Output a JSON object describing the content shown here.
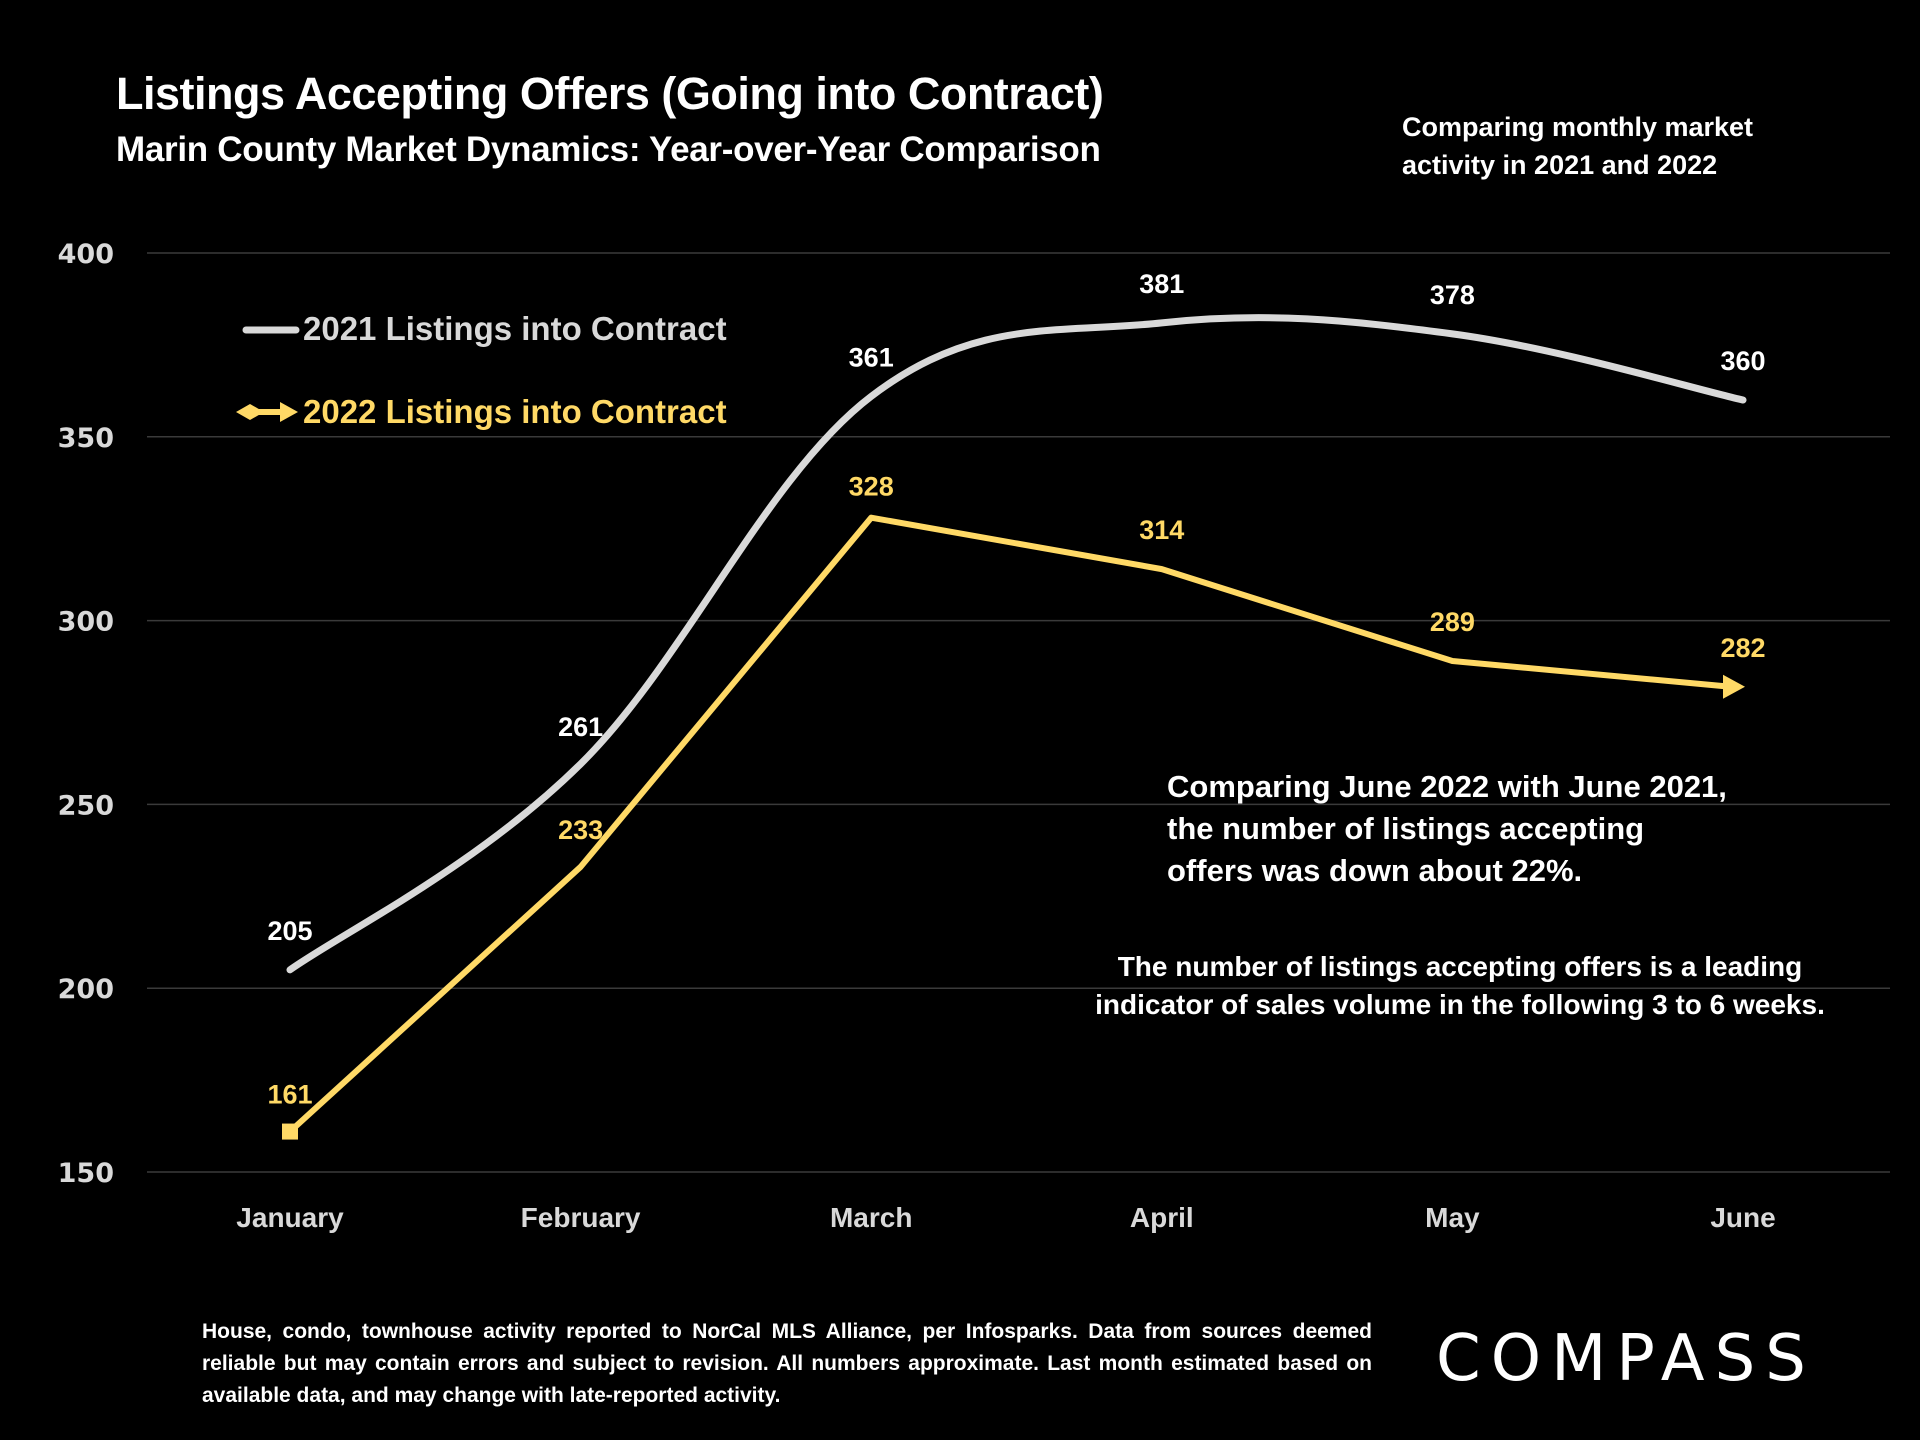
{
  "header": {
    "title": "Listings Accepting Offers (Going into Contract)",
    "subtitle": "Marin County Market Dynamics: Year-over-Year Comparison",
    "side_note": "Comparing monthly market activity in 2021 and 2022"
  },
  "annotations": {
    "comparison": "Comparing June 2022 with June 2021, the number of listings accepting offers was down about 22%.",
    "leading_indicator": "The number of listings accepting offers is a leading indicator of sales volume in the following 3 to 6 weeks."
  },
  "footer": {
    "note": "House, condo, townhouse activity reported to NorCal MLS Alliance, per Infosparks. Data from sources deemed reliable but may contain errors and subject to revision. All numbers approximate. Last month estimated based on available data, and may change with late-reported activity.",
    "logo": "COMPASS"
  },
  "colors": {
    "background": "#000000",
    "series_2021": "#d9d9d9",
    "series_2022": "#ffd966",
    "gridline": "#3a3a3a",
    "axis_text": "#d9d9d9"
  },
  "chart_data": {
    "type": "line",
    "title": "Listings Accepting Offers (Going into Contract)",
    "xlabel": "",
    "ylabel": "",
    "categories": [
      "January",
      "February",
      "March",
      "April",
      "May",
      "June"
    ],
    "ylim": [
      150,
      400
    ],
    "yticks": [
      150,
      200,
      250,
      300,
      350,
      400
    ],
    "grid": true,
    "legend_position": "top-left",
    "series": [
      {
        "name": "2021 Listings into Contract",
        "values": [
          205,
          261,
          361,
          381,
          378,
          360
        ],
        "smooth": true,
        "color": "#d9d9d9",
        "labels": [
          "205",
          "261",
          "361",
          "381",
          "378",
          "360"
        ]
      },
      {
        "name": "2022 Listings into Contract",
        "values": [
          161,
          233,
          328,
          314,
          289,
          282
        ],
        "smooth": false,
        "color": "#ffd966",
        "start_marker": "square",
        "end_marker": "arrow",
        "labels": [
          "161",
          "233",
          "328",
          "314",
          "289",
          "282"
        ]
      }
    ]
  }
}
